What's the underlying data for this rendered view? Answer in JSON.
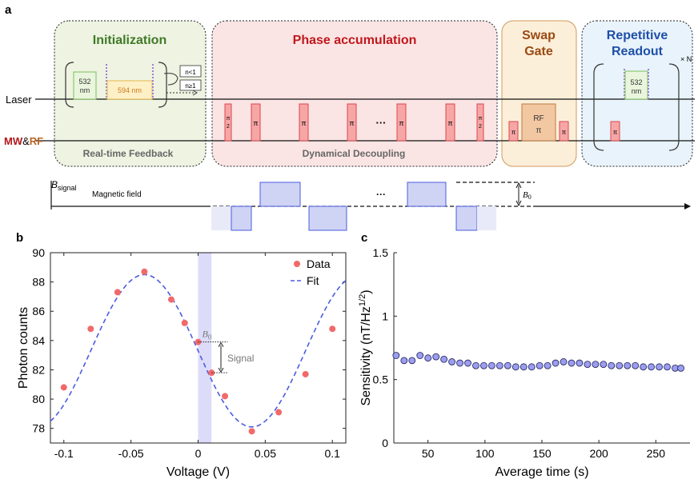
{
  "panel_labels": {
    "a": "a",
    "b": "b",
    "c": "c"
  },
  "schematic": {
    "boxes": {
      "initialization": "Initialization",
      "phase_accumulation": "Phase accumulation",
      "swap_line1": "Swap",
      "swap_line2": "Gate",
      "readout_line1": "Repetitive",
      "readout_line2": "Readout"
    },
    "footers": {
      "init": "Real-time Feedback",
      "phase": "Dynamical Decoupling"
    },
    "rows": {
      "laser": "Laser",
      "mw": "MW",
      "amp": "&",
      "rf": "RF"
    },
    "init_inner": {
      "green_top": "532",
      "green_bottom": "nm",
      "yellow": "594 nm",
      "cond_lt": "n<1",
      "cond_ge": "n≥1"
    },
    "pulses": {
      "pi": "π",
      "half_top": "π",
      "half_bottom": "2",
      "ellipsis": "···",
      "rf_top": "RF",
      "rf_bottom": "π"
    },
    "readout_inner": {
      "green_top": "532",
      "green_bottom": "nm",
      "repeat": "× N"
    },
    "field": {
      "b_signal": "B",
      "b_signal_sub": "signal",
      "label": "Magnetic field",
      "b0": "B",
      "b0_sub": "0",
      "ellipsis": "···"
    }
  },
  "chart_data": [
    {
      "id": "b",
      "type": "scatter",
      "title": "",
      "xlabel": "Voltage (V)",
      "ylabel": "Photon counts",
      "xlim": [
        -0.11,
        0.11
      ],
      "ylim": [
        77,
        90
      ],
      "xticks": [
        -0.1,
        -0.05,
        0,
        0.05,
        0.1
      ],
      "xtick_labels": [
        "-0.1",
        "-0.05",
        "0",
        "0.05",
        "0.1"
      ],
      "yticks": [
        78,
        80,
        82,
        84,
        86,
        88,
        90
      ],
      "ytick_labels": [
        "78",
        "80",
        "82",
        "84",
        "86",
        "88",
        "90"
      ],
      "series": [
        {
          "name": "Data",
          "x": [
            -0.1,
            -0.08,
            -0.06,
            -0.04,
            -0.02,
            -0.01,
            0,
            0.01,
            0.02,
            0.04,
            0.06,
            0.08,
            0.1
          ],
          "y": [
            80.8,
            84.8,
            87.3,
            88.7,
            86.8,
            85.2,
            83.9,
            81.8,
            80.2,
            77.8,
            79.1,
            81.7,
            84.8
          ],
          "color": "#f16a6a"
        },
        {
          "name": "Fit",
          "model": "sine",
          "offset": 83.3,
          "amplitude": 5.2,
          "center_voltage": -0.04,
          "period": 0.16,
          "color": "#4b5ce0"
        }
      ],
      "highlight_band": [
        0,
        0.01
      ],
      "annotations": {
        "b0_label": "B",
        "b0_sub": "0",
        "signal_label": "Signal",
        "b0_y": 83.9,
        "signal_low_y": 81.8
      },
      "legend_position": "top-right"
    },
    {
      "id": "c",
      "type": "scatter",
      "title": "",
      "xlabel": "Average time (s)",
      "ylabel": "Sensitivity (nT/Hz",
      "ylabel_sup": "1/2",
      "ylabel_end": ")",
      "xlim": [
        20,
        280
      ],
      "ylim": [
        0,
        1.5
      ],
      "xticks": [
        50,
        100,
        150,
        200,
        250
      ],
      "xtick_labels": [
        "50",
        "100",
        "150",
        "200",
        "250"
      ],
      "yticks": [
        0,
        0.5,
        1,
        1.5
      ],
      "ytick_labels": [
        "0",
        "0.5",
        "1",
        "1.5"
      ],
      "series": [
        {
          "name": "Sensitivity",
          "x": [
            22,
            29,
            36,
            43,
            50,
            57,
            64,
            71,
            78,
            85,
            92,
            99,
            106,
            113,
            120,
            127,
            134,
            141,
            148,
            155,
            162,
            169,
            176,
            183,
            190,
            197,
            204,
            211,
            218,
            225,
            232,
            239,
            246,
            253,
            260,
            267,
            272
          ],
          "y": [
            0.69,
            0.65,
            0.65,
            0.69,
            0.67,
            0.68,
            0.66,
            0.64,
            0.63,
            0.63,
            0.61,
            0.61,
            0.61,
            0.61,
            0.61,
            0.6,
            0.6,
            0.6,
            0.61,
            0.61,
            0.63,
            0.64,
            0.63,
            0.63,
            0.62,
            0.62,
            0.62,
            0.61,
            0.61,
            0.61,
            0.61,
            0.6,
            0.6,
            0.6,
            0.6,
            0.59,
            0.59
          ],
          "color": "#9b9df0"
        }
      ]
    }
  ]
}
